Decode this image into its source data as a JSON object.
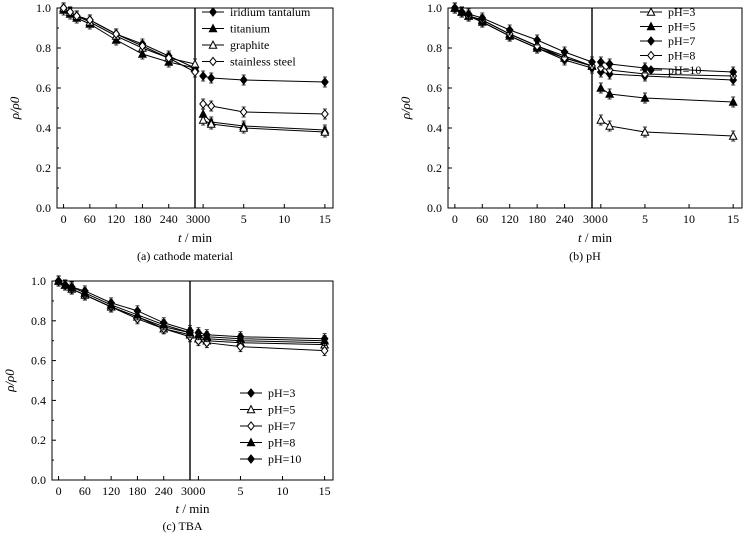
{
  "chart_data": [
    {
      "type": "line",
      "caption": "(a) cathode material",
      "xlabel_var": "t",
      "xlabel_unit": " / min",
      "ylabel": "ρ/ρ0",
      "ylim": [
        0.0,
        1.0
      ],
      "yticks": [
        "0.0",
        "0.2",
        "0.4",
        "0.6",
        "0.8",
        "1.0"
      ],
      "segment1": {
        "xlim": [
          -15,
          300
        ],
        "ticks": [
          "0",
          "60",
          "120",
          "180",
          "240",
          "300"
        ]
      },
      "segment2": {
        "xlim": [
          -1,
          16
        ],
        "ticks": [
          "0",
          "5",
          "10",
          "15"
        ]
      },
      "legend_position": "top-right",
      "series": [
        {
          "name": "iridium tantalum",
          "marker": "diamond-filled",
          "seg1": [
            [
              0,
              1.0
            ],
            [
              15,
              0.98
            ],
            [
              30,
              0.96
            ],
            [
              60,
              0.94
            ],
            [
              120,
              0.87
            ],
            [
              180,
              0.82
            ],
            [
              240,
              0.76
            ],
            [
              300,
              0.7
            ]
          ],
          "seg2": [
            [
              0,
              0.66
            ],
            [
              1,
              0.65
            ],
            [
              5,
              0.64
            ],
            [
              15,
              0.63
            ]
          ]
        },
        {
          "name": "titanium",
          "marker": "triangle-filled",
          "seg1": [
            [
              0,
              0.99
            ],
            [
              15,
              0.97
            ],
            [
              30,
              0.95
            ],
            [
              60,
              0.92
            ],
            [
              120,
              0.84
            ],
            [
              180,
              0.77
            ],
            [
              240,
              0.73
            ],
            [
              300,
              0.7
            ]
          ],
          "seg2": [
            [
              0,
              0.47
            ],
            [
              1,
              0.43
            ],
            [
              5,
              0.41
            ],
            [
              15,
              0.39
            ]
          ]
        },
        {
          "name": "graphite",
          "marker": "triangle-open",
          "seg1": [
            [
              0,
              1.0
            ],
            [
              15,
              0.98
            ],
            [
              30,
              0.96
            ],
            [
              60,
              0.93
            ],
            [
              120,
              0.86
            ],
            [
              180,
              0.8
            ],
            [
              240,
              0.75
            ],
            [
              300,
              0.72
            ]
          ],
          "seg2": [
            [
              0,
              0.44
            ],
            [
              1,
              0.42
            ],
            [
              5,
              0.4
            ],
            [
              15,
              0.38
            ]
          ]
        },
        {
          "name": "stainless steel",
          "marker": "diamond-open",
          "seg1": [
            [
              0,
              1.0
            ],
            [
              15,
              0.98
            ],
            [
              30,
              0.96
            ],
            [
              60,
              0.94
            ],
            [
              120,
              0.87
            ],
            [
              180,
              0.81
            ],
            [
              240,
              0.75
            ],
            [
              300,
              0.68
            ]
          ],
          "seg2": [
            [
              0,
              0.52
            ],
            [
              1,
              0.51
            ],
            [
              5,
              0.48
            ],
            [
              15,
              0.47
            ]
          ]
        }
      ]
    },
    {
      "type": "line",
      "caption": "(b) pH",
      "xlabel_var": "t",
      "xlabel_unit": " / min",
      "ylabel": "ρ/ρ0",
      "ylim": [
        0.0,
        1.0
      ],
      "yticks": [
        "0.0",
        "0.2",
        "0.4",
        "0.6",
        "0.8",
        "1.0"
      ],
      "segment1": {
        "xlim": [
          -15,
          300
        ],
        "ticks": [
          "0",
          "60",
          "120",
          "180",
          "240",
          "300"
        ]
      },
      "segment2": {
        "xlim": [
          -1,
          16
        ],
        "ticks": [
          "0",
          "5",
          "10",
          "15"
        ]
      },
      "legend_position": "top-right",
      "series": [
        {
          "name": "pH=3",
          "marker": "triangle-open",
          "seg1": [
            [
              0,
              1.0
            ],
            [
              15,
              0.98
            ],
            [
              30,
              0.96
            ],
            [
              60,
              0.94
            ],
            [
              120,
              0.87
            ],
            [
              180,
              0.81
            ],
            [
              240,
              0.76
            ],
            [
              300,
              0.71
            ]
          ],
          "seg2": [
            [
              0,
              0.44
            ],
            [
              1,
              0.41
            ],
            [
              5,
              0.38
            ],
            [
              15,
              0.36
            ]
          ]
        },
        {
          "name": "pH=5",
          "marker": "triangle-filled",
          "seg1": [
            [
              0,
              1.0
            ],
            [
              15,
              0.98
            ],
            [
              30,
              0.96
            ],
            [
              60,
              0.93
            ],
            [
              120,
              0.86
            ],
            [
              180,
              0.8
            ],
            [
              240,
              0.75
            ],
            [
              300,
              0.71
            ]
          ],
          "seg2": [
            [
              0,
              0.6
            ],
            [
              1,
              0.57
            ],
            [
              5,
              0.55
            ],
            [
              15,
              0.53
            ]
          ]
        },
        {
          "name": "pH=7",
          "marker": "diamond-filled",
          "seg1": [
            [
              0,
              1.0
            ],
            [
              15,
              0.98
            ],
            [
              30,
              0.96
            ],
            [
              60,
              0.93
            ],
            [
              120,
              0.86
            ],
            [
              180,
              0.8
            ],
            [
              240,
              0.74
            ],
            [
              300,
              0.7
            ]
          ],
          "seg2": [
            [
              0,
              0.68
            ],
            [
              1,
              0.67
            ],
            [
              5,
              0.66
            ],
            [
              15,
              0.64
            ]
          ]
        },
        {
          "name": "pH=8",
          "marker": "diamond-open",
          "seg1": [
            [
              0,
              1.0
            ],
            [
              15,
              0.98
            ],
            [
              30,
              0.96
            ],
            [
              60,
              0.94
            ],
            [
              120,
              0.87
            ],
            [
              180,
              0.81
            ],
            [
              240,
              0.75
            ],
            [
              300,
              0.71
            ]
          ],
          "seg2": [
            [
              0,
              0.7
            ],
            [
              1,
              0.69
            ],
            [
              5,
              0.67
            ],
            [
              15,
              0.66
            ]
          ]
        },
        {
          "name": "pH=10",
          "marker": "diamond-filled",
          "seg1": [
            [
              0,
              1.0
            ],
            [
              15,
              0.98
            ],
            [
              30,
              0.97
            ],
            [
              60,
              0.95
            ],
            [
              120,
              0.89
            ],
            [
              180,
              0.84
            ],
            [
              240,
              0.78
            ],
            [
              300,
              0.73
            ]
          ],
          "seg2": [
            [
              0,
              0.73
            ],
            [
              1,
              0.72
            ],
            [
              5,
              0.7
            ],
            [
              15,
              0.68
            ]
          ]
        }
      ]
    },
    {
      "type": "line",
      "caption": "(c) TBA",
      "xlabel_var": "t",
      "xlabel_unit": " / min",
      "ylabel": "ρ/ρ0",
      "ylim": [
        0.0,
        1.0
      ],
      "yticks": [
        "0.0",
        "0.2",
        "0.4",
        "0.6",
        "0.8",
        "1.0"
      ],
      "segment1": {
        "xlim": [
          -15,
          300
        ],
        "ticks": [
          "0",
          "60",
          "120",
          "180",
          "240",
          "300"
        ]
      },
      "segment2": {
        "xlim": [
          -1,
          16
        ],
        "ticks": [
          "0",
          "5",
          "10",
          "15"
        ]
      },
      "legend_position": "lower-right",
      "series": [
        {
          "name": "pH=3",
          "marker": "diamond-filled",
          "seg1": [
            [
              0,
              1.0
            ],
            [
              15,
              0.98
            ],
            [
              30,
              0.96
            ],
            [
              60,
              0.93
            ],
            [
              120,
              0.87
            ],
            [
              180,
              0.82
            ],
            [
              240,
              0.77
            ],
            [
              300,
              0.74
            ]
          ],
          "seg2": [
            [
              0,
              0.72
            ],
            [
              1,
              0.71
            ],
            [
              5,
              0.7
            ],
            [
              15,
              0.69
            ]
          ]
        },
        {
          "name": "pH=5",
          "marker": "triangle-open",
          "seg1": [
            [
              0,
              1.0
            ],
            [
              15,
              0.98
            ],
            [
              30,
              0.96
            ],
            [
              60,
              0.93
            ],
            [
              120,
              0.87
            ],
            [
              180,
              0.82
            ],
            [
              240,
              0.76
            ],
            [
              300,
              0.73
            ]
          ],
          "seg2": [
            [
              0,
              0.71
            ],
            [
              1,
              0.7
            ],
            [
              5,
              0.69
            ],
            [
              15,
              0.68
            ]
          ]
        },
        {
          "name": "pH=7",
          "marker": "diamond-open",
          "seg1": [
            [
              0,
              1.0
            ],
            [
              15,
              0.98
            ],
            [
              30,
              0.96
            ],
            [
              60,
              0.93
            ],
            [
              120,
              0.87
            ],
            [
              180,
              0.81
            ],
            [
              240,
              0.76
            ],
            [
              300,
              0.72
            ]
          ],
          "seg2": [
            [
              0,
              0.7
            ],
            [
              1,
              0.69
            ],
            [
              5,
              0.67
            ],
            [
              15,
              0.65
            ]
          ]
        },
        {
          "name": "pH=8",
          "marker": "triangle-filled",
          "seg1": [
            [
              0,
              1.0
            ],
            [
              15,
              0.98
            ],
            [
              30,
              0.97
            ],
            [
              60,
              0.94
            ],
            [
              120,
              0.88
            ],
            [
              180,
              0.83
            ],
            [
              240,
              0.78
            ],
            [
              300,
              0.74
            ]
          ],
          "seg2": [
            [
              0,
              0.73
            ],
            [
              1,
              0.72
            ],
            [
              5,
              0.71
            ],
            [
              15,
              0.7
            ]
          ]
        },
        {
          "name": "pH=10",
          "marker": "diamond-filled",
          "seg1": [
            [
              0,
              1.0
            ],
            [
              15,
              0.98
            ],
            [
              30,
              0.97
            ],
            [
              60,
              0.95
            ],
            [
              120,
              0.89
            ],
            [
              180,
              0.85
            ],
            [
              240,
              0.79
            ],
            [
              300,
              0.75
            ]
          ],
          "seg2": [
            [
              0,
              0.74
            ],
            [
              1,
              0.73
            ],
            [
              5,
              0.72
            ],
            [
              15,
              0.71
            ]
          ]
        }
      ]
    }
  ]
}
